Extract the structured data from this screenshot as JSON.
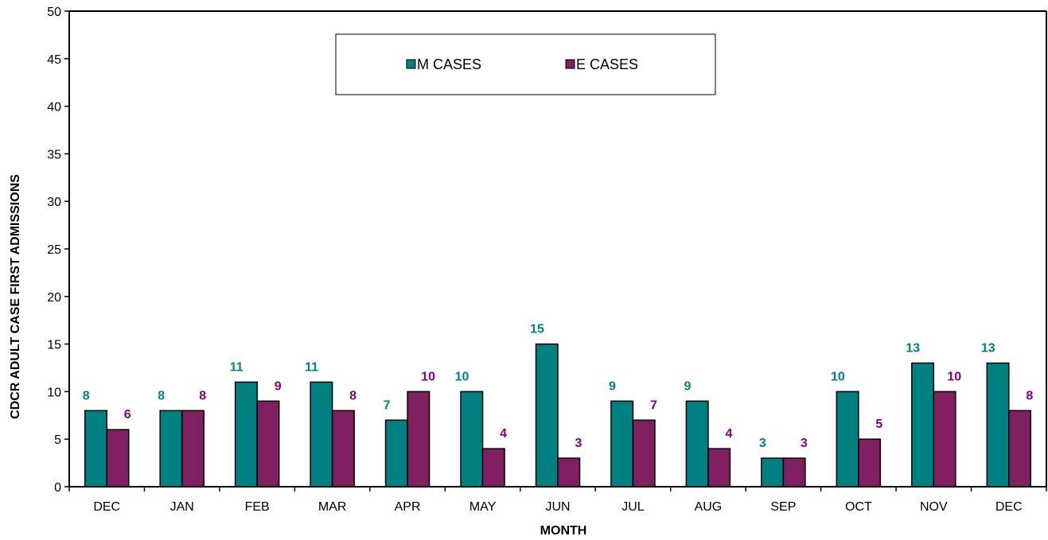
{
  "chart_data": {
    "type": "bar",
    "categories": [
      "DEC",
      "JAN",
      "FEB",
      "MAR",
      "APR",
      "MAY",
      "JUN",
      "JUL",
      "AUG",
      "SEP",
      "OCT",
      "NOV",
      "DEC"
    ],
    "series": [
      {
        "name": "M CASES",
        "color": "#008080",
        "label_color": "#008080",
        "values": [
          8,
          8,
          11,
          11,
          7,
          10,
          15,
          9,
          9,
          3,
          10,
          13,
          13
        ]
      },
      {
        "name": "E CASES",
        "color": "#7f1f5f",
        "label_color": "#800080",
        "values": [
          6,
          8,
          9,
          8,
          10,
          4,
          3,
          7,
          4,
          3,
          5,
          10,
          8
        ]
      }
    ],
    "xlabel": "MONTH",
    "ylabel": "CDCR ADULT CASE FIRST ADMISSIONS",
    "ylim": [
      0,
      50
    ],
    "ytick_step": 5,
    "grid": false,
    "legend_position": "top-center"
  }
}
